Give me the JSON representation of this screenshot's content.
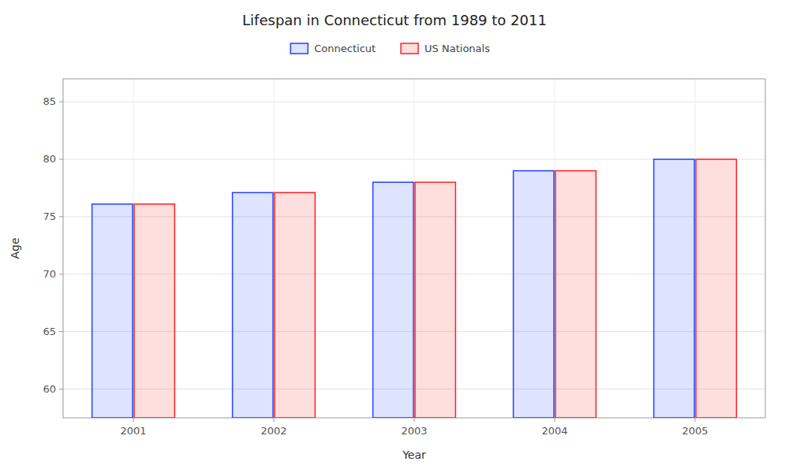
{
  "chart_data": {
    "type": "bar",
    "title": "Lifespan in Connecticut from 1989 to 2011",
    "x_label": "Year",
    "y_label": "Age",
    "categories": [
      "2001",
      "2002",
      "2003",
      "2004",
      "2005"
    ],
    "series": [
      {
        "name": "Connecticut",
        "color": "#2244ff",
        "values": [
          76.1,
          77.1,
          78.0,
          79.0,
          80.0
        ]
      },
      {
        "name": "US Nationals",
        "color": "#ff2222",
        "values": [
          76.1,
          77.1,
          78.0,
          79.0,
          80.0
        ]
      }
    ],
    "ylim": [
      57.5,
      87
    ],
    "yticks": [
      60,
      65,
      70,
      75,
      80,
      85
    ],
    "grid": true,
    "legend": "top"
  }
}
